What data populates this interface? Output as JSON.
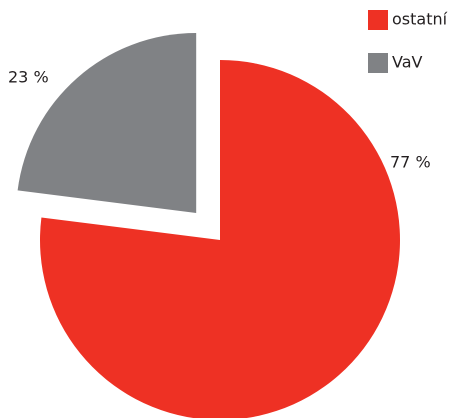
{
  "chart_data": {
    "type": "pie",
    "categories": [
      "ostatní",
      "VaV"
    ],
    "values": [
      77,
      23
    ],
    "value_labels": [
      "77 %",
      "23 %"
    ],
    "colors": [
      "#ee3124",
      "#808285"
    ],
    "exploded": [
      false,
      true
    ],
    "legend": "top-right"
  }
}
